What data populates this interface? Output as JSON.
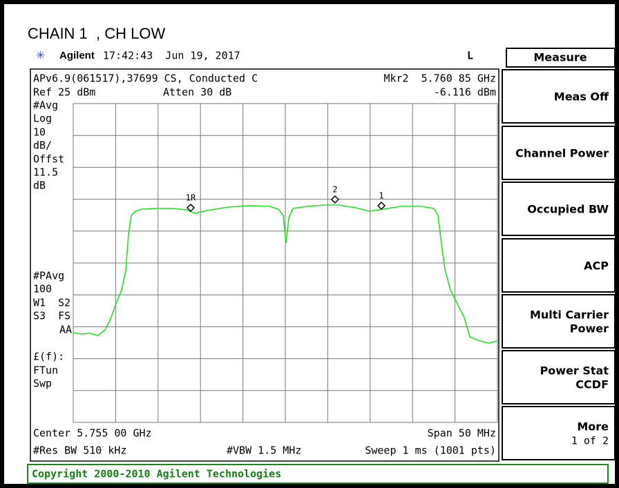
{
  "title": "CHAIN 1  , CH LOW",
  "header": {
    "brand": "Agilent",
    "time": "17:42:43  Jun 19, 2017",
    "indicator": "L"
  },
  "screen": {
    "info": "APv6.9(061517),37699 CS, Conducted C",
    "marker_freq": "Mkr2  5.760 85 GHz",
    "ref": "Ref 25 dBm",
    "atten": "Atten 30 dB",
    "marker_level": "-6.116 dBm",
    "left_labels": [
      "#Avg",
      "Log",
      "10",
      "dB/",
      "Offst",
      "11.5",
      "dB",
      "#PAvg",
      "100",
      "W1  S2",
      "S3  FS",
      "AA",
      "£(f):",
      "FTun",
      "Swp"
    ],
    "markers": [
      "1R",
      "2",
      "1"
    ],
    "center": "Center 5.755 00 GHz",
    "span": "Span 50 MHz",
    "rbw": "#Res BW 510 kHz",
    "vbw": "#VBW 1.5 MHz",
    "sweep": "Sweep 1 ms (1001 pts)"
  },
  "menu": {
    "title": "Measure",
    "keys": [
      [
        "Meas Off"
      ],
      [
        "Channel Power"
      ],
      [
        "Occupied BW"
      ],
      [
        "ACP"
      ],
      [
        "Multi Carrier",
        "Power"
      ],
      [
        "Power Stat",
        "CCDF"
      ],
      [
        "More",
        "1 of 2"
      ]
    ]
  },
  "copyright": "Copyright 2000-2010 Agilent Technologies"
}
